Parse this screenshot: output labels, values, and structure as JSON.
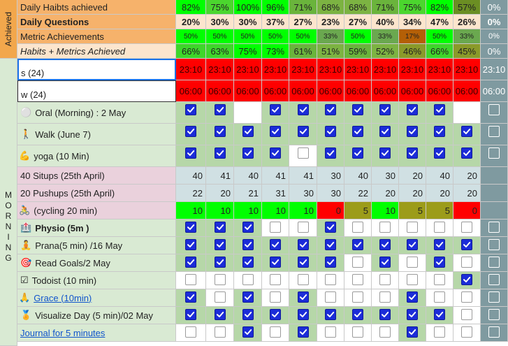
{
  "colors": {
    "orange_section": "#f2a74c",
    "morning_section": "#d9ead3",
    "light_green": "#d9ead3",
    "pink": "#ead1dc",
    "gray_blue": "#d0e0e3",
    "peach": "#fce5cd",
    "right_col": "#7f9aa0",
    "bright_green": "#00ff00",
    "mid_green": "#5cd84a",
    "olive": "#6aa84f",
    "dark_olive": "#9c9c1a",
    "red": "#ff0000",
    "checkbox_on": "#1b2cd8"
  },
  "sections": {
    "achieved": "Achieved",
    "morning": "MORNING"
  },
  "rows": [
    {
      "type": "pct",
      "label": "Daily Haibts achieved",
      "label_bg": "#f6b26b",
      "values": [
        "82%",
        "75%",
        "100%",
        "96%",
        "71%",
        "68%",
        "68%",
        "71%",
        "75%",
        "82%",
        "57%"
      ],
      "bgs": [
        "#00ff00",
        "#4bd62e",
        "#00ff00",
        "#00ff00",
        "#6ab43c",
        "#7cb342",
        "#7cb342",
        "#6ab43c",
        "#4bd62e",
        "#00ff00",
        "#6b8e23"
      ],
      "right": "0%"
    },
    {
      "type": "pct",
      "label": "Daily Questions",
      "label_bg": "#f6b26b",
      "bold": true,
      "values": [
        "20%",
        "30%",
        "30%",
        "37%",
        "27%",
        "23%",
        "27%",
        "40%",
        "34%",
        "47%",
        "26%"
      ],
      "bgs": [
        "#fce5cd",
        "#fce5cd",
        "#fce5cd",
        "#fce5cd",
        "#fce5cd",
        "#fce5cd",
        "#fce5cd",
        "#fce5cd",
        "#fce5cd",
        "#fce5cd",
        "#fce5cd"
      ],
      "right": "0%"
    },
    {
      "type": "pct",
      "label": "Metric Achievements",
      "label_bg": "#f6b26b",
      "small": true,
      "values": [
        "50%",
        "50%",
        "50%",
        "50%",
        "50%",
        "33%",
        "50%",
        "33%",
        "17%",
        "50%",
        "33%"
      ],
      "bgs": [
        "#00ff00",
        "#00ff00",
        "#00ff00",
        "#00ff00",
        "#00ff00",
        "#6aa84f",
        "#00ff00",
        "#6aa84f",
        "#b45f06",
        "#00ff00",
        "#6aa84f"
      ],
      "right": "0%"
    },
    {
      "type": "pct",
      "label": "Habits + Metrics Achieved",
      "label_bg": "#fce5cd",
      "italic": true,
      "values": [
        "66%",
        "63%",
        "75%",
        "73%",
        "61%",
        "51%",
        "59%",
        "52%",
        "46%",
        "66%",
        "45%"
      ],
      "bgs": [
        "#3ed62a",
        "#3ed62a",
        "#00ff00",
        "#00ff00",
        "#6ab43c",
        "#7cb342",
        "#6ab43c",
        "#7cb342",
        "#8a9a2a",
        "#3ed62a",
        "#8a9a2a"
      ],
      "right": "0%"
    },
    {
      "type": "time",
      "label": "s (24)",
      "values": [
        "23:10",
        "23:10",
        "23:10",
        "23:10",
        "23:10",
        "23:10",
        "23:10",
        "23:10",
        "23:10",
        "23:10",
        "23:10"
      ],
      "right": "23:10"
    },
    {
      "type": "time",
      "label": "w (24)",
      "values": [
        "06:00",
        "06:00",
        "06:00",
        "06:00",
        "06:00",
        "06:00",
        "06:00",
        "06:00",
        "06:00",
        "06:00",
        "06:00"
      ],
      "right": "06:00"
    },
    {
      "type": "check",
      "icon": "⚪",
      "icon_name": "white-circle-icon",
      "label": "Oral (Morning) : 2 May",
      "values": [
        true,
        true,
        null,
        true,
        true,
        true,
        true,
        true,
        true,
        true,
        null
      ],
      "bgs": [
        "l",
        "l",
        "w",
        "l",
        "l",
        "l",
        "l",
        "l",
        "l",
        "l",
        "w"
      ]
    },
    {
      "type": "check",
      "icon": "🚶",
      "icon_name": "walking-person-icon",
      "label": "Walk (June 7)",
      "values": [
        true,
        true,
        true,
        true,
        true,
        true,
        true,
        true,
        true,
        true,
        true
      ]
    },
    {
      "type": "check",
      "icon": "💪",
      "icon_name": "flexed-biceps-icon",
      "label": "yoga (10 Min)",
      "label_pad": 2,
      "values": [
        true,
        true,
        true,
        true,
        false,
        true,
        true,
        true,
        true,
        true,
        true
      ],
      "bgs": [
        "l",
        "l",
        "l",
        "l",
        "w",
        "l",
        "l",
        "l",
        "l",
        "l",
        "l"
      ]
    },
    {
      "type": "num",
      "label": "40 Situps (25th April)",
      "label_bg": "#ead1dc",
      "values": [
        "40",
        "41",
        "40",
        "41",
        "41",
        "30",
        "40",
        "30",
        "20",
        "40",
        "20"
      ]
    },
    {
      "type": "num",
      "label": "20 Pushups (25th April)",
      "label_bg": "#ead1dc",
      "values": [
        "22",
        "20",
        "21",
        "31",
        "30",
        "30",
        "22",
        "20",
        "20",
        "20",
        "20"
      ]
    },
    {
      "type": "numc",
      "icon": "🚴",
      "icon_name": "cyclist-icon",
      "label": "(cycling 20 min)",
      "label_pad": 2,
      "label_bg": "#ead1dc",
      "values": [
        "10",
        "10",
        "10",
        "10",
        "10",
        "0",
        "5",
        "10",
        "5",
        "5",
        "0"
      ],
      "bgs": [
        "#00ff00",
        "#00ff00",
        "#00ff00",
        "#00ff00",
        "#00ff00",
        "#ff0000",
        "#9c9c1a",
        "#00ff00",
        "#9c9c1a",
        "#9c9c1a",
        "#ff0000"
      ]
    },
    {
      "type": "check",
      "icon": "🏥",
      "icon_name": "physio-icon",
      "label": "Physio (5m )",
      "bold": true,
      "values": [
        true,
        true,
        true,
        false,
        false,
        true,
        false,
        false,
        false,
        false,
        false
      ],
      "bgs": [
        "l",
        "l",
        "l",
        "w",
        "w",
        "l",
        "w",
        "w",
        "w",
        "w",
        "w"
      ]
    },
    {
      "type": "check",
      "icon": "🧘",
      "icon_name": "meditation-icon",
      "label": "Prana(5 min) /16 May",
      "values": [
        true,
        true,
        true,
        true,
        true,
        true,
        true,
        true,
        true,
        true,
        true
      ]
    },
    {
      "type": "check",
      "icon": "🎯",
      "icon_name": "target-icon",
      "label": "Read Goals/2 May",
      "values": [
        true,
        true,
        true,
        true,
        true,
        true,
        false,
        true,
        false,
        true,
        false
      ],
      "bgs": [
        "l",
        "l",
        "l",
        "l",
        "l",
        "l",
        "w",
        "l",
        "w",
        "l",
        "w"
      ]
    },
    {
      "type": "check",
      "icon": "☑",
      "icon_name": "checkbox-icon",
      "label": "Todoist (10 min)",
      "values": [
        false,
        false,
        false,
        false,
        false,
        false,
        false,
        false,
        false,
        false,
        true
      ],
      "bgs": [
        "w",
        "w",
        "w",
        "w",
        "w",
        "w",
        "w",
        "w",
        "w",
        "w",
        "l"
      ]
    },
    {
      "type": "check",
      "icon": "🙏",
      "icon_name": "praying-hands-icon",
      "label": "Grace (10min)",
      "label_pad": 2,
      "link": true,
      "values": [
        true,
        false,
        true,
        false,
        true,
        false,
        false,
        false,
        true,
        false,
        false
      ],
      "bgs": [
        "l",
        "w",
        "l",
        "w",
        "l",
        "w",
        "w",
        "w",
        "l",
        "w",
        "w"
      ]
    },
    {
      "type": "check",
      "icon": "🏅",
      "icon_name": "medal-icon",
      "label": "Visualize Day (5 min)/02 May",
      "values": [
        true,
        true,
        true,
        true,
        true,
        true,
        true,
        true,
        true,
        true,
        false
      ],
      "bgs": [
        "l",
        "l",
        "l",
        "l",
        "l",
        "l",
        "l",
        "l",
        "l",
        "l",
        "w"
      ]
    },
    {
      "type": "check",
      "label": "Journal for 5 minutes",
      "link": true,
      "values": [
        false,
        false,
        true,
        false,
        true,
        false,
        false,
        false,
        true,
        false,
        false
      ],
      "bgs": [
        "w",
        "w",
        "l",
        "w",
        "l",
        "w",
        "w",
        "w",
        "l",
        "w",
        "w"
      ]
    }
  ]
}
